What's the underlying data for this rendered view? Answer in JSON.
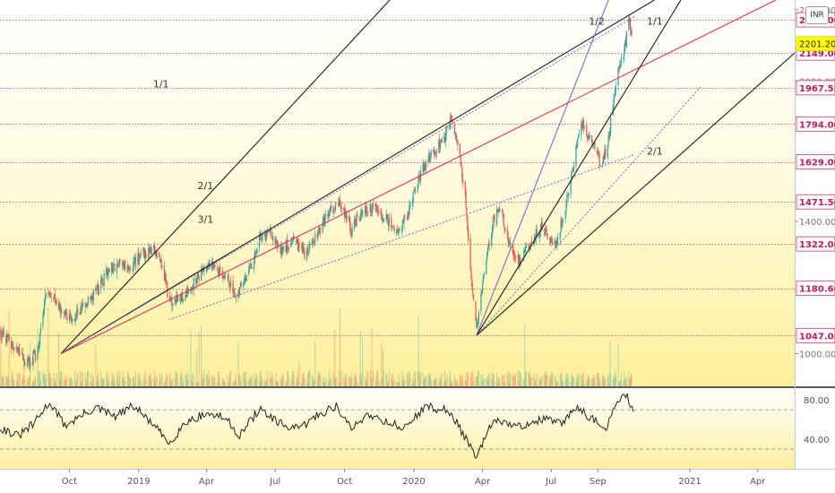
{
  "currency": "INR",
  "chart_data": [
    {
      "type": "candlestick",
      "price_axis": {
        "ticks": [
          1000,
          1400,
          2000,
          2400
        ],
        "tick_labels": [
          "1000.00",
          "1400.00",
          "2000.00",
          "2400.00"
        ],
        "ylim": [
          920,
          2460
        ],
        "scale": "log"
      },
      "time_axis": {
        "labels": [
          "Oct",
          "2019",
          "Apr",
          "Jul",
          "Oct",
          "2020",
          "Apr",
          "Jul",
          "Sep",
          "2021",
          "Apr"
        ],
        "label_dates": [
          "2018-10-01",
          "2019-01-01",
          "2019-04-01",
          "2019-07-01",
          "2019-10-01",
          "2020-01-01",
          "2020-04-01",
          "2020-07-01",
          "2020-09-01",
          "2021-01-01",
          "2021-04-01"
        ],
        "xlim": [
          "2018-07-01",
          "2021-05-20"
        ]
      },
      "levels": [
        {
          "value": 2339,
          "label": "2339.00"
        },
        {
          "value": 2149,
          "label": "2149.00"
        },
        {
          "value": 1967.55,
          "label": "1967.55"
        },
        {
          "value": 1794,
          "label": "1794.00"
        },
        {
          "value": 1629,
          "label": "1629.00"
        },
        {
          "value": 1471.5,
          "label": "1471.50"
        },
        {
          "value": 1322,
          "label": "1322.00"
        },
        {
          "value": 1180.6,
          "label": "1180.60"
        },
        {
          "value": 1047.05,
          "label": "1047.05"
        }
      ],
      "last_price": {
        "value": 2201.2,
        "label": "2201.20"
      },
      "price_path": [
        [
          "2018-07-01",
          1060
        ],
        [
          "2018-07-20",
          1015
        ],
        [
          "2018-08-05",
          975
        ],
        [
          "2018-08-20",
          1000
        ],
        [
          "2018-09-01",
          1185
        ],
        [
          "2018-09-15",
          1140
        ],
        [
          "2018-09-25",
          1105
        ],
        [
          "2018-10-05",
          1085
        ],
        [
          "2018-10-20",
          1130
        ],
        [
          "2018-11-05",
          1170
        ],
        [
          "2018-11-20",
          1230
        ],
        [
          "2018-12-05",
          1260
        ],
        [
          "2018-12-20",
          1245
        ],
        [
          "2019-01-05",
          1285
        ],
        [
          "2019-01-20",
          1310
        ],
        [
          "2019-02-01",
          1255
        ],
        [
          "2019-02-10",
          1140
        ],
        [
          "2019-03-01",
          1160
        ],
        [
          "2019-03-20",
          1210
        ],
        [
          "2019-04-05",
          1250
        ],
        [
          "2019-04-20",
          1240
        ],
        [
          "2019-05-10",
          1160
        ],
        [
          "2019-05-25",
          1215
        ],
        [
          "2019-06-10",
          1340
        ],
        [
          "2019-06-25",
          1360
        ],
        [
          "2019-07-10",
          1300
        ],
        [
          "2019-07-25",
          1340
        ],
        [
          "2019-08-10",
          1290
        ],
        [
          "2019-08-25",
          1350
        ],
        [
          "2019-09-10",
          1430
        ],
        [
          "2019-09-25",
          1480
        ],
        [
          "2019-10-10",
          1370
        ],
        [
          "2019-10-25",
          1440
        ],
        [
          "2019-11-10",
          1450
        ],
        [
          "2019-11-25",
          1410
        ],
        [
          "2019-12-10",
          1360
        ],
        [
          "2019-12-25",
          1440
        ],
        [
          "2020-01-10",
          1590
        ],
        [
          "2020-01-25",
          1660
        ],
        [
          "2020-02-10",
          1730
        ],
        [
          "2020-02-18",
          1810
        ],
        [
          "2020-02-28",
          1700
        ],
        [
          "2020-03-08",
          1530
        ],
        [
          "2020-03-15",
          1280
        ],
        [
          "2020-03-24",
          1060
        ],
        [
          "2020-04-05",
          1260
        ],
        [
          "2020-04-15",
          1400
        ],
        [
          "2020-04-25",
          1450
        ],
        [
          "2020-05-05",
          1330
        ],
        [
          "2020-05-20",
          1260
        ],
        [
          "2020-06-05",
          1330
        ],
        [
          "2020-06-20",
          1390
        ],
        [
          "2020-07-05",
          1300
        ],
        [
          "2020-07-20",
          1450
        ],
        [
          "2020-08-01",
          1640
        ],
        [
          "2020-08-10",
          1810
        ],
        [
          "2020-08-20",
          1720
        ],
        [
          "2020-08-30",
          1690
        ],
        [
          "2020-09-05",
          1610
        ],
        [
          "2020-09-15",
          1720
        ],
        [
          "2020-09-25",
          2000
        ],
        [
          "2020-10-05",
          2150
        ],
        [
          "2020-10-12",
          2330
        ],
        [
          "2020-10-18",
          2200
        ]
      ],
      "trendlines": [
        {
          "label": "1/1",
          "color": "#1d1d1d",
          "points": [
            [
              "2018-09-20",
              1000
            ],
            [
              "2019-11-30",
              2460
            ]
          ]
        },
        {
          "label": "2/1",
          "color": "#1d1d1d",
          "points": [
            [
              "2018-09-20",
              1000
            ],
            [
              "2020-11-15",
              2460
            ]
          ]
        },
        {
          "label": "3/1",
          "color": "#e0355c",
          "points": [
            [
              "2018-09-20",
              1000
            ],
            [
              "2021-04-25",
              2460
            ]
          ]
        },
        {
          "label": "",
          "color": "#6a6ac9",
          "dashed": true,
          "points": [
            [
              "2018-09-20",
              1000
            ],
            [
              "2020-10-20",
              2360
            ]
          ]
        },
        {
          "label": "",
          "color": "#6a6ac9",
          "dashed": true,
          "points": [
            [
              "2019-02-10",
              1090
            ],
            [
              "2020-10-20",
              1660
            ]
          ]
        },
        {
          "label": "1/2",
          "color": "#7b6ad6",
          "points": [
            [
              "2020-03-24",
              1047
            ],
            [
              "2020-09-15",
              2460
            ]
          ]
        },
        {
          "label": "1/1",
          "color": "#1d1d1d",
          "points": [
            [
              "2020-03-24",
              1047
            ],
            [
              "2020-12-20",
              2460
            ]
          ]
        },
        {
          "label": "2/1",
          "color": "#1d1d1d",
          "points": [
            [
              "2020-03-24",
              1047
            ],
            [
              "2021-05-20",
              2150
            ]
          ]
        },
        {
          "label": "",
          "color": "#6a6ac9",
          "dashed": true,
          "points": [
            [
              "2020-03-24",
              1047
            ],
            [
              "2021-01-15",
              1970
            ]
          ]
        }
      ],
      "trendline_labels": [
        {
          "text": "1/1",
          "date": "2019-01-20",
          "value": 1970
        },
        {
          "text": "2/1",
          "date": "2019-03-20",
          "value": 1520
        },
        {
          "text": "3/1",
          "date": "2019-03-20",
          "value": 1395
        },
        {
          "text": "1/2",
          "date": "2020-08-20",
          "value": 2310
        },
        {
          "text": "1/1",
          "date": "2020-11-05",
          "value": 2310
        },
        {
          "text": "2/1",
          "date": "2020-11-05",
          "value": 1660
        }
      ]
    },
    {
      "type": "line",
      "indicator": "oscillator",
      "ticks": [
        80,
        40
      ],
      "tick_labels": [
        "80.00",
        "40.00"
      ],
      "ylim": [
        10,
        92
      ],
      "bands": [
        70,
        30
      ],
      "path": [
        [
          "2018-07-01",
          52
        ],
        [
          "2018-07-25",
          43
        ],
        [
          "2018-08-15",
          56
        ],
        [
          "2018-09-05",
          78
        ],
        [
          "2018-09-25",
          54
        ],
        [
          "2018-10-15",
          63
        ],
        [
          "2018-11-05",
          72
        ],
        [
          "2018-12-01",
          63
        ],
        [
          "2018-12-25",
          74
        ],
        [
          "2019-01-20",
          55
        ],
        [
          "2019-02-10",
          36
        ],
        [
          "2019-03-05",
          58
        ],
        [
          "2019-04-01",
          66
        ],
        [
          "2019-04-25",
          62
        ],
        [
          "2019-05-15",
          44
        ],
        [
          "2019-06-10",
          71
        ],
        [
          "2019-07-05",
          56
        ],
        [
          "2019-08-01",
          50
        ],
        [
          "2019-08-25",
          64
        ],
        [
          "2019-09-20",
          74
        ],
        [
          "2019-10-10",
          50
        ],
        [
          "2019-11-01",
          66
        ],
        [
          "2019-11-25",
          58
        ],
        [
          "2019-12-20",
          51
        ],
        [
          "2020-01-15",
          73
        ],
        [
          "2020-02-10",
          70
        ],
        [
          "2020-02-25",
          60
        ],
        [
          "2020-03-10",
          40
        ],
        [
          "2020-03-24",
          20
        ],
        [
          "2020-04-10",
          52
        ],
        [
          "2020-04-25",
          60
        ],
        [
          "2020-05-15",
          52
        ],
        [
          "2020-06-05",
          57
        ],
        [
          "2020-06-25",
          61
        ],
        [
          "2020-07-15",
          55
        ],
        [
          "2020-08-05",
          74
        ],
        [
          "2020-08-25",
          60
        ],
        [
          "2020-09-10",
          49
        ],
        [
          "2020-09-25",
          74
        ],
        [
          "2020-10-08",
          86
        ],
        [
          "2020-10-18",
          68
        ]
      ]
    }
  ]
}
